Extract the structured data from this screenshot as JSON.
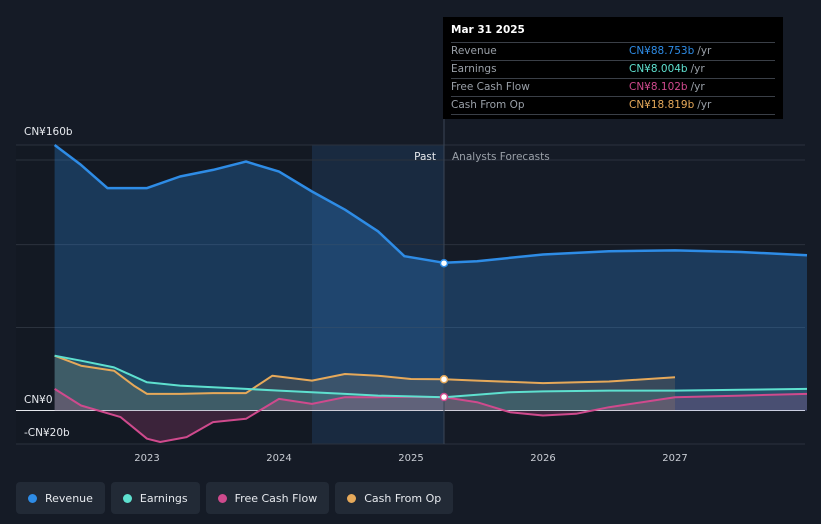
{
  "chart_data": {
    "type": "line",
    "title": "",
    "y_unit_prefix": "CN¥",
    "ylim": [
      -20,
      160
    ],
    "xlim": [
      2022.3,
      2028.0
    ],
    "y_tick_labels": [
      {
        "value": 160,
        "label": "CN¥160b"
      },
      {
        "value": 0,
        "label": "CN¥0"
      },
      {
        "value": -20,
        "label": "-CN¥20b"
      }
    ],
    "x_tick_labels": [
      {
        "value": 2023,
        "label": "2023"
      },
      {
        "value": 2024,
        "label": "2024"
      },
      {
        "value": 2025,
        "label": "2025"
      },
      {
        "value": 2026,
        "label": "2026"
      },
      {
        "value": 2027,
        "label": "2027"
      }
    ],
    "past_label": "Past",
    "forecast_label": "Analysts Forecasts",
    "past_end": 2025.25,
    "highlight_start": 2024.25,
    "series": [
      {
        "name": "Revenue",
        "color": "#2e8ce6",
        "fill": true,
        "values": [
          [
            2022.3,
            160
          ],
          [
            2022.5,
            148
          ],
          [
            2022.7,
            134
          ],
          [
            2023.0,
            134
          ],
          [
            2023.25,
            141
          ],
          [
            2023.5,
            145
          ],
          [
            2023.75,
            150
          ],
          [
            2024.0,
            144
          ],
          [
            2024.25,
            132
          ],
          [
            2024.5,
            121
          ],
          [
            2024.75,
            108
          ],
          [
            2024.95,
            93
          ],
          [
            2025.25,
            89
          ],
          [
            2025.5,
            90
          ],
          [
            2026.0,
            94
          ],
          [
            2026.5,
            96
          ],
          [
            2027.0,
            96.5
          ],
          [
            2027.5,
            95.5
          ],
          [
            2028.0,
            93.5
          ]
        ]
      },
      {
        "name": "Earnings",
        "color": "#5ee0cf",
        "fill": true,
        "values": [
          [
            2022.3,
            33
          ],
          [
            2022.5,
            30
          ],
          [
            2022.75,
            26
          ],
          [
            2023.0,
            17
          ],
          [
            2023.25,
            15
          ],
          [
            2023.5,
            14
          ],
          [
            2023.75,
            13
          ],
          [
            2024.0,
            12
          ],
          [
            2024.25,
            11
          ],
          [
            2024.5,
            10
          ],
          [
            2024.75,
            9
          ],
          [
            2025.0,
            8.5
          ],
          [
            2025.25,
            8
          ],
          [
            2025.5,
            9.5
          ],
          [
            2025.75,
            11
          ],
          [
            2026.0,
            11.5
          ],
          [
            2026.5,
            12
          ],
          [
            2027.0,
            12
          ],
          [
            2027.5,
            12.5
          ],
          [
            2028.0,
            13
          ]
        ]
      },
      {
        "name": "Free Cash Flow",
        "color": "#cf4a8d",
        "fill": true,
        "values": [
          [
            2022.3,
            13
          ],
          [
            2022.5,
            3
          ],
          [
            2022.8,
            -4
          ],
          [
            2023.0,
            -17
          ],
          [
            2023.1,
            -19
          ],
          [
            2023.3,
            -16
          ],
          [
            2023.5,
            -7
          ],
          [
            2023.75,
            -5
          ],
          [
            2024.0,
            7
          ],
          [
            2024.25,
            4
          ],
          [
            2024.5,
            8
          ],
          [
            2024.75,
            8
          ],
          [
            2025.0,
            8.2
          ],
          [
            2025.25,
            8.1
          ],
          [
            2025.5,
            5
          ],
          [
            2025.75,
            -1
          ],
          [
            2026.0,
            -3
          ],
          [
            2026.25,
            -2
          ],
          [
            2026.5,
            2
          ],
          [
            2026.75,
            5
          ],
          [
            2027.0,
            8
          ],
          [
            2027.5,
            9
          ],
          [
            2028.0,
            10
          ]
        ]
      },
      {
        "name": "Cash From Op",
        "color": "#e6a95a",
        "fill": true,
        "values": [
          [
            2022.3,
            33
          ],
          [
            2022.5,
            27
          ],
          [
            2022.75,
            24
          ],
          [
            2022.9,
            15
          ],
          [
            2023.0,
            10
          ],
          [
            2023.25,
            10
          ],
          [
            2023.5,
            10.5
          ],
          [
            2023.75,
            10.5
          ],
          [
            2023.95,
            21
          ],
          [
            2024.25,
            18
          ],
          [
            2024.5,
            22
          ],
          [
            2024.75,
            21
          ],
          [
            2025.0,
            19
          ],
          [
            2025.25,
            18.8
          ],
          [
            2025.5,
            18
          ],
          [
            2026.0,
            16.5
          ],
          [
            2026.5,
            17.5
          ],
          [
            2027.0,
            20
          ]
        ]
      }
    ],
    "highlight_points": [
      {
        "series": "Revenue",
        "x": 2025.25,
        "y": 88.753
      },
      {
        "series": "Free Cash Flow",
        "x": 2025.25,
        "y": 8.102
      },
      {
        "series": "Cash From Op",
        "x": 2025.25,
        "y": 18.819
      }
    ]
  },
  "tooltip": {
    "date": "Mar 31 2025",
    "rows": [
      {
        "name": "Revenue",
        "value": "CN¥88.753b",
        "unit": "/yr",
        "color": "#2e8ce6"
      },
      {
        "name": "Earnings",
        "value": "CN¥8.004b",
        "unit": "/yr",
        "color": "#5ee0cf"
      },
      {
        "name": "Free Cash Flow",
        "value": "CN¥8.102b",
        "unit": "/yr",
        "color": "#cf4a8d"
      },
      {
        "name": "Cash From Op",
        "value": "CN¥18.819b",
        "unit": "/yr",
        "color": "#e6a95a"
      }
    ]
  },
  "legend": [
    {
      "label": "Revenue",
      "color": "#2e8ce6"
    },
    {
      "label": "Earnings",
      "color": "#5ee0cf"
    },
    {
      "label": "Free Cash Flow",
      "color": "#cf4a8d"
    },
    {
      "label": "Cash From Op",
      "color": "#e6a95a"
    }
  ]
}
